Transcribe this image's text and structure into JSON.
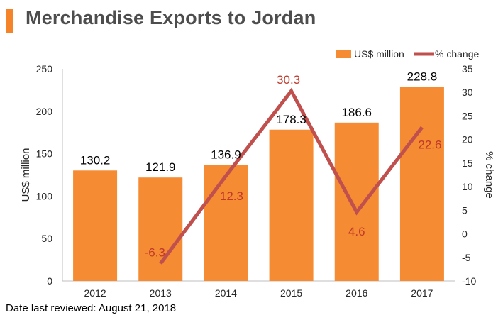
{
  "header": {
    "title": "Merchandise Exports to Jordan"
  },
  "footnote": "Date last reviewed: August 21, 2018",
  "colors": {
    "accent": "#f5832a",
    "bar": "#f58b32",
    "line": "#c0504d",
    "line_label": "#c0392b",
    "axis_text": "#262626",
    "axis_line": "#bfbfbf"
  },
  "chart_data": {
    "type": "bar",
    "categories": [
      "2012",
      "2013",
      "2014",
      "2015",
      "2016",
      "2017"
    ],
    "series": [
      {
        "name": "US$ million",
        "type": "bar",
        "axis": "left",
        "values": [
          130.2,
          121.9,
          136.9,
          178.3,
          186.6,
          228.8
        ],
        "labels": [
          "130.2",
          "121.9",
          "136.9",
          "178.3",
          "186.6",
          "228.8"
        ]
      },
      {
        "name": "% change",
        "type": "line",
        "axis": "right",
        "values": [
          null,
          -6.3,
          12.3,
          30.3,
          4.6,
          22.6
        ],
        "labels": [
          "",
          "-6.3",
          "12.3",
          "30.3",
          "4.6",
          "22.6"
        ]
      }
    ],
    "ylabel": "US$ million",
    "y2label": "% change",
    "ylim": [
      0,
      250
    ],
    "y2lim": [
      -10,
      35
    ],
    "yticks": [
      "0",
      "50",
      "100",
      "150",
      "200",
      "250"
    ],
    "y2ticks": [
      "-10",
      "-5",
      "0",
      "5",
      "10",
      "15",
      "20",
      "25",
      "30",
      "35"
    ],
    "legend_position": "top-right",
    "grid": false
  }
}
